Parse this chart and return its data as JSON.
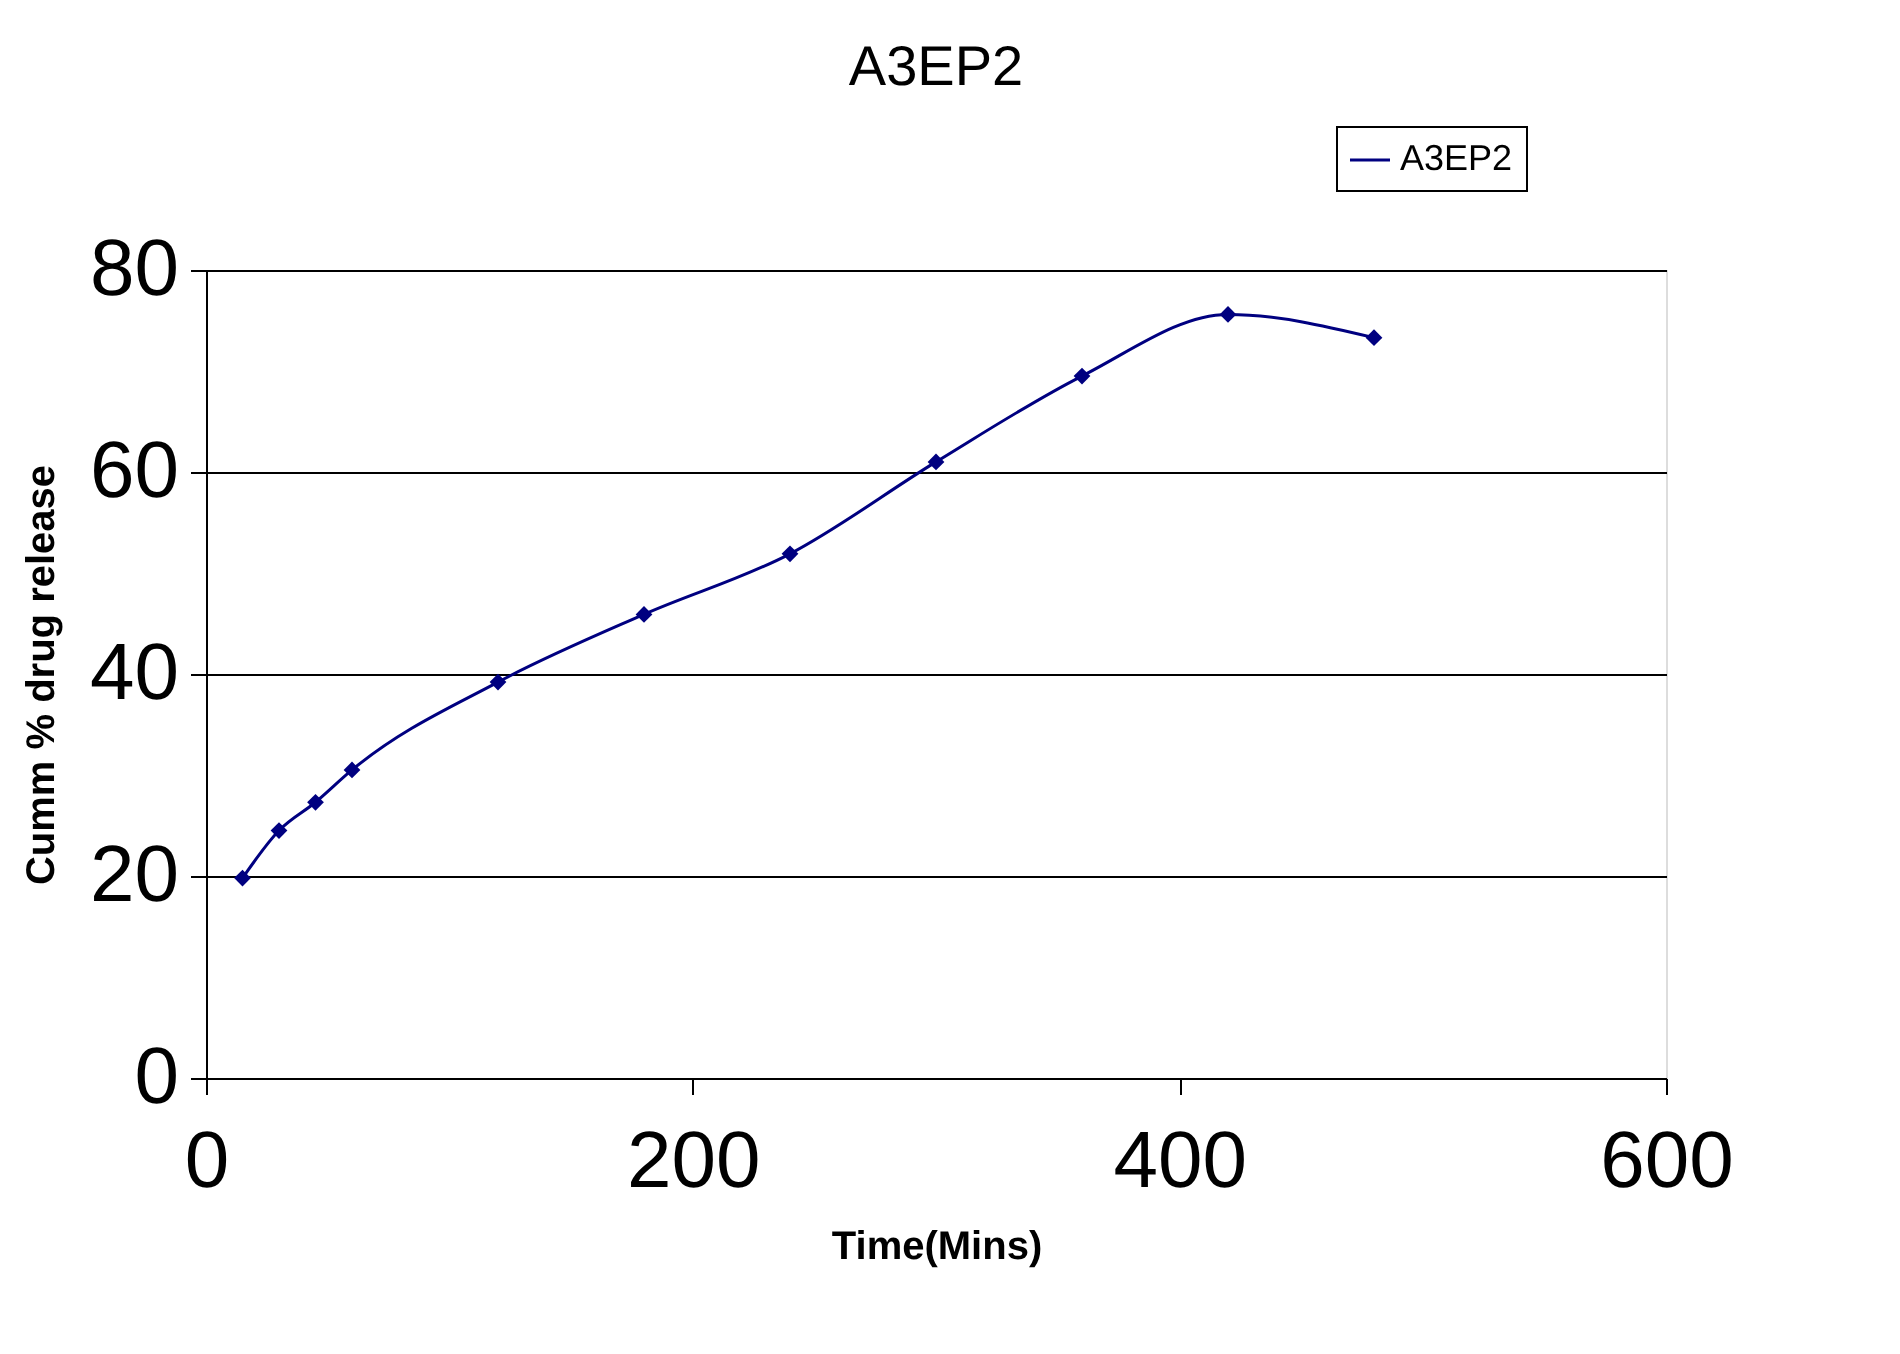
{
  "chart_data": {
    "type": "line",
    "title": "A3EP2",
    "xlabel": "Time(Mins)",
    "ylabel": "Cumm % drug release",
    "x": [
      15,
      30,
      45,
      60,
      120,
      180,
      240,
      300,
      360,
      420,
      480
    ],
    "series": [
      {
        "name": "A3EP2",
        "color": "#000080",
        "values": [
          19.8,
          24.5,
          27.3,
          30.5,
          39.2,
          45.9,
          51.9,
          61.0,
          69.5,
          75.6,
          73.3
        ]
      }
    ],
    "xlim": [
      0,
      600
    ],
    "xticks": [
      0,
      200,
      400,
      600
    ],
    "ylim": [
      0,
      80
    ],
    "yticks": [
      0,
      20,
      40,
      60,
      80
    ],
    "grid": "y",
    "legend": "top right",
    "marker": "diamond",
    "line_style": "solid"
  }
}
